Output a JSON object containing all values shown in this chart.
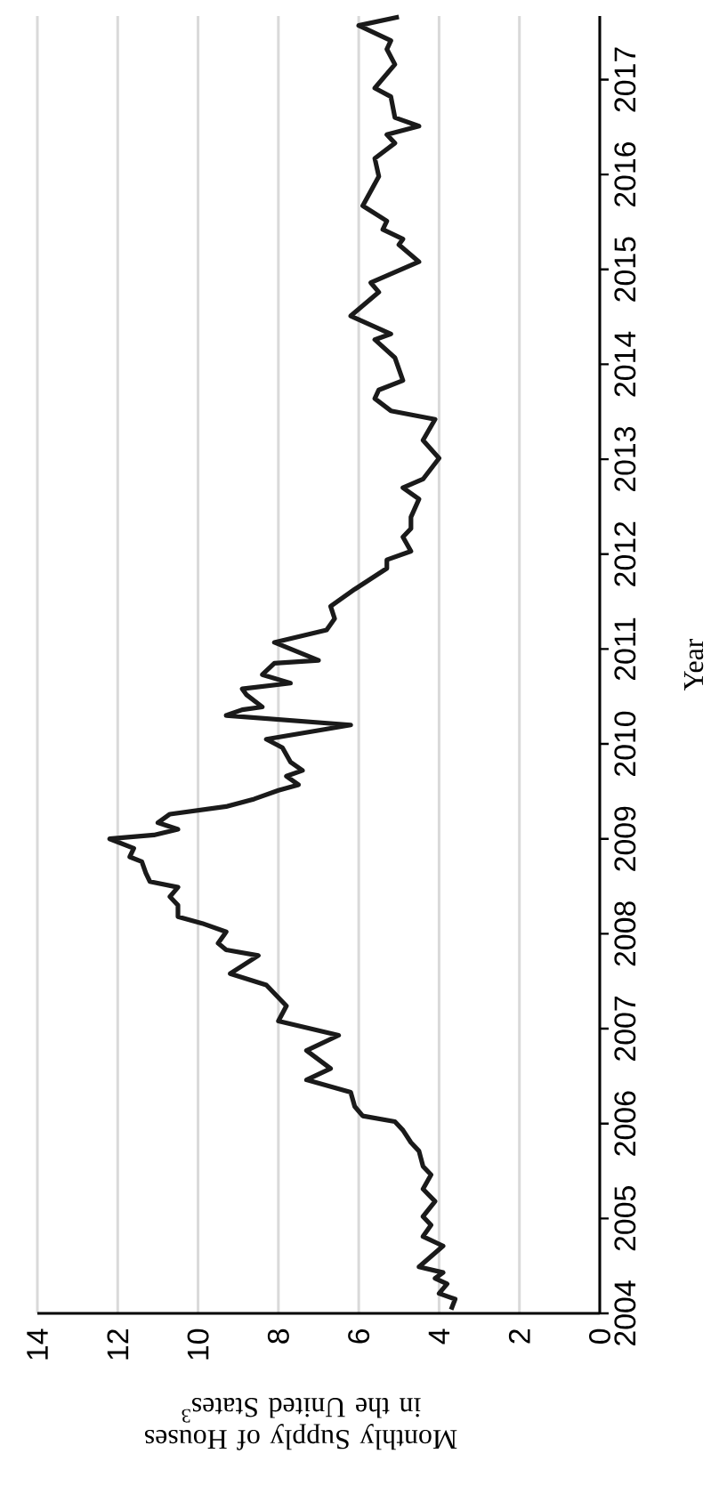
{
  "chart_data": {
    "type": "line",
    "xlabel": "Monthly Supply of Houses in the United States$^{3}$",
    "ylabel": "Year",
    "x": [
      3.7,
      3.6,
      4.0,
      3.8,
      4.1,
      3.9,
      4.5,
      3.9,
      4.4,
      4.2,
      4.4,
      4.1,
      4.4,
      4.2,
      4.4,
      4.5,
      4.7,
      4.9,
      5.1,
      5.9,
      6.1,
      6.2,
      7.3,
      6.7,
      7.3,
      6.5,
      8.0,
      7.8,
      8.3,
      9.2,
      8.5,
      9.3,
      9.5,
      9.3,
      9.9,
      10.5,
      10.5,
      10.7,
      10.5,
      11.2,
      11.3,
      11.4,
      11.7,
      11.6,
      12.2,
      11.1,
      10.5,
      11.0,
      10.7,
      9.3,
      8.6,
      8.0,
      7.5,
      7.8,
      7.4,
      7.7,
      7.9,
      8.3,
      6.2,
      9.3,
      8.9,
      8.4,
      8.8,
      8.9,
      7.7,
      8.4,
      8.1,
      7.0,
      8.1,
      6.8,
      6.6,
      6.7,
      6.1,
      5.3,
      5.3,
      4.7,
      4.9,
      4.7,
      4.7,
      4.5,
      4.9,
      4.4,
      4.0,
      4.4,
      4.1,
      5.2,
      5.6,
      5.5,
      4.9,
      5.1,
      5.6,
      5.2,
      6.2,
      5.5,
      5.7,
      4.5,
      5.0,
      4.9,
      5.4,
      5.3,
      5.9,
      5.5,
      5.6,
      5.1,
      5.3,
      4.5,
      5.1,
      5.2,
      5.6,
      5.1,
      5.3,
      5.2,
      6.0,
      5.0
    ],
    "values": [
      2004.04,
      2004.15,
      2004.21,
      2004.31,
      2004.37,
      2004.43,
      2004.49,
      2004.71,
      2004.81,
      2004.93,
      2005.02,
      2005.18,
      2005.31,
      2005.46,
      2005.55,
      2005.71,
      2005.8,
      2005.93,
      2006.02,
      2006.08,
      2006.18,
      2006.33,
      2006.46,
      2006.58,
      2006.77,
      2006.93,
      2007.08,
      2007.24,
      2007.46,
      2007.58,
      2007.77,
      2007.83,
      2007.9,
      2008.02,
      2008.11,
      2008.18,
      2008.3,
      2008.39,
      2008.49,
      2008.55,
      2008.64,
      2008.76,
      2008.81,
      2008.9,
      2009.0,
      2009.04,
      2009.1,
      2009.17,
      2009.26,
      2009.34,
      2009.42,
      2009.51,
      2009.57,
      2009.66,
      2009.72,
      2009.81,
      2009.96,
      2010.05,
      2010.2,
      2010.3,
      2010.36,
      2010.39,
      2010.52,
      2010.58,
      2010.64,
      2010.73,
      2010.85,
      2010.88,
      2011.07,
      2011.2,
      2011.32,
      2011.45,
      2011.63,
      2011.85,
      2011.94,
      2012.03,
      2012.18,
      2012.27,
      2012.39,
      2012.58,
      2012.7,
      2012.79,
      2013.01,
      2013.2,
      2013.42,
      2013.51,
      2013.64,
      2013.73,
      2013.83,
      2014.07,
      2014.26,
      2014.32,
      2014.51,
      2014.76,
      2014.86,
      2015.08,
      2015.26,
      2015.32,
      2015.42,
      2015.51,
      2015.67,
      2015.98,
      2016.17,
      2016.33,
      2016.42,
      2016.51,
      2016.6,
      2016.82,
      2016.91,
      2017.16,
      2017.32,
      2017.41,
      2017.57,
      2017.66
    ],
    "color": "#1a1a1a",
    "xlim": [
      14,
      0
    ],
    "ylim": [
      2004,
      2017.67
    ],
    "xticks": [
      0,
      2,
      4,
      6,
      8,
      10,
      12,
      14
    ],
    "yticks": [
      2004,
      2005,
      2006,
      2007,
      2008,
      2009,
      2010,
      2011,
      2012,
      2013,
      2014,
      2015,
      2016,
      2017
    ],
    "grid": "x"
  }
}
